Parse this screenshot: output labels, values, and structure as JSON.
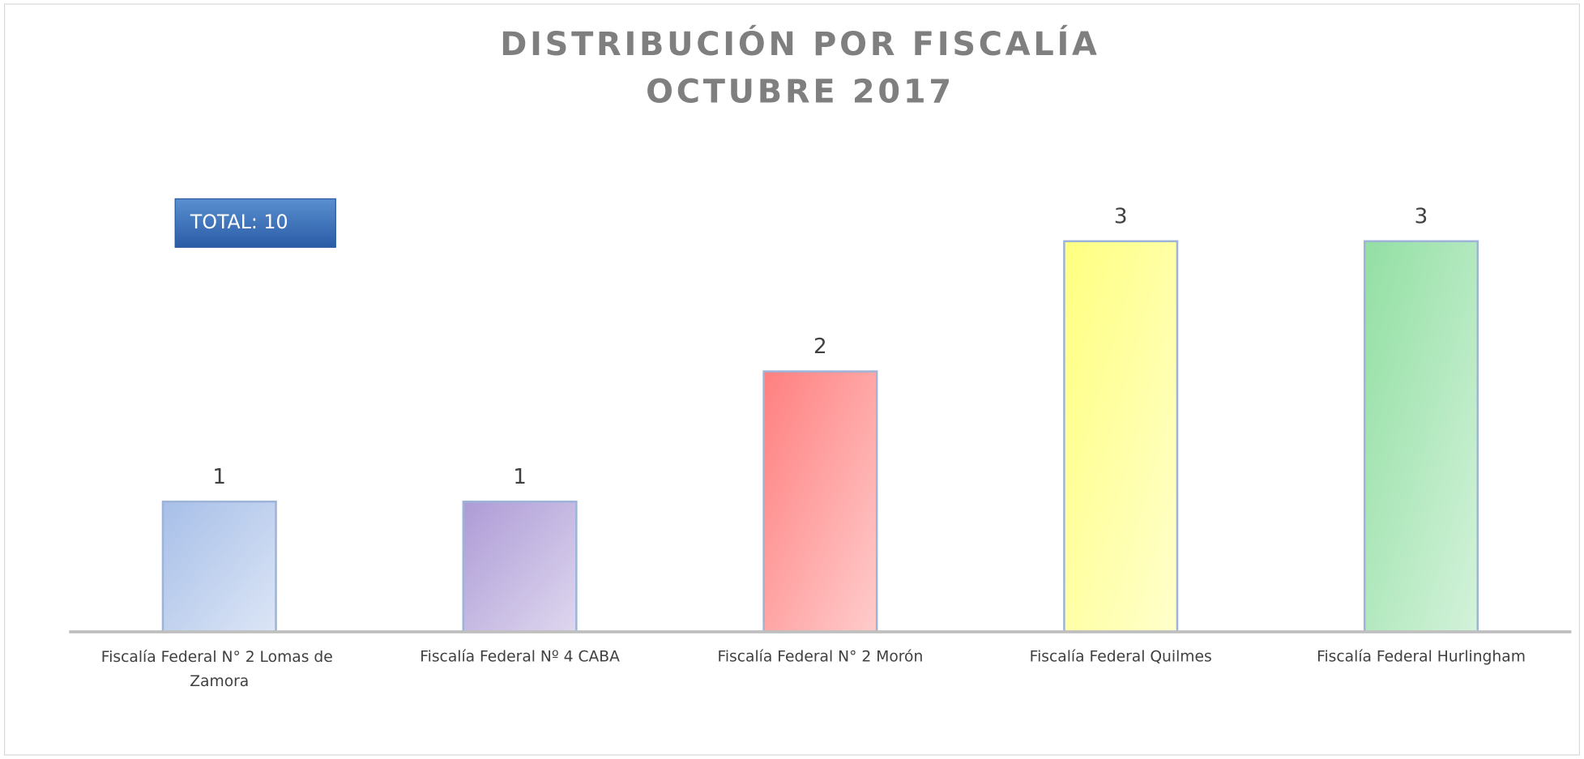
{
  "chart_data": {
    "type": "bar",
    "title": [
      "DISTRIBUCIÓN POR FISCALÍA",
      "OCTUBRE 2017"
    ],
    "annotation": "TOTAL: 10",
    "categories": [
      "Fiscalía Federal N° 2 Lomas de Zamora",
      "Fiscalía Federal Nº 4 CABA",
      "Fiscalía Federal N° 2 Morón",
      "Fiscalía Federal Quilmes",
      "Fiscalía Federal Hurlingham"
    ],
    "values": [
      1,
      1,
      2,
      3,
      3
    ],
    "colors": [
      "#a7bfe8",
      "#ad9bd6",
      "#ff7f7f",
      "#ffff80",
      "#92dfa3"
    ],
    "grid": false
  }
}
